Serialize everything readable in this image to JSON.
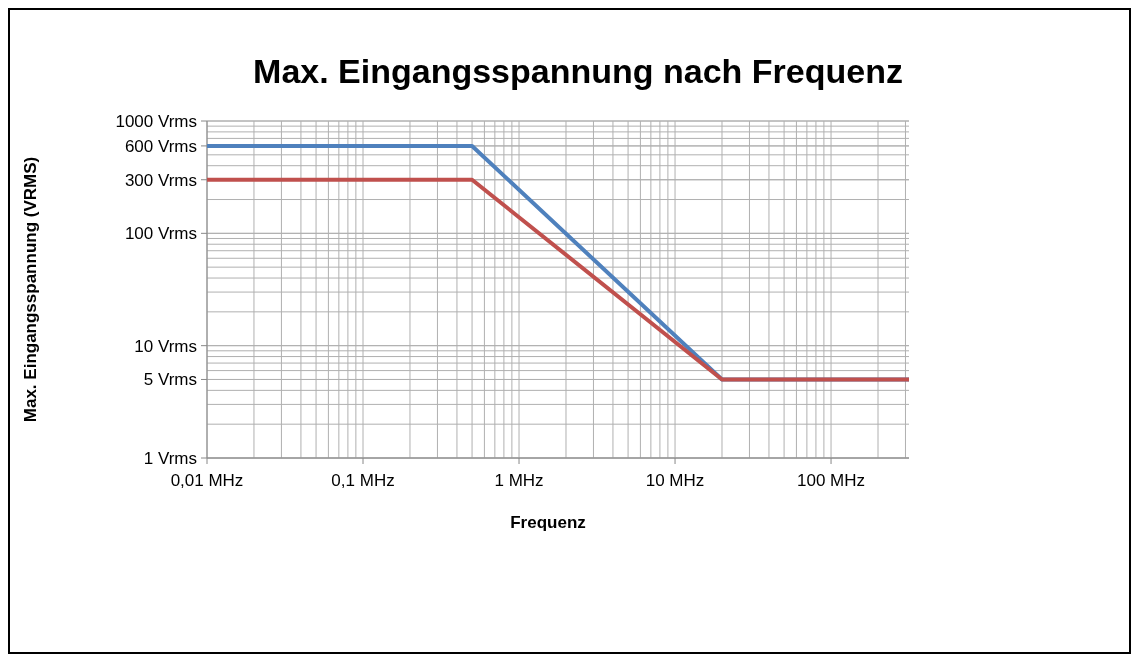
{
  "chart_data": {
    "type": "line",
    "title": "Max. Eingangsspannung nach Frequenz",
    "xlabel": "Frequenz",
    "ylabel": "Max. Eingangsspannung (VRMS)",
    "log": "xy",
    "grid": true,
    "legend": false,
    "xlim": [
      0.01,
      316
    ],
    "xticks": [
      {
        "value": 0.01,
        "label": "0,01 MHz"
      },
      {
        "value": 0.1,
        "label": "0,1 MHz"
      },
      {
        "value": 1,
        "label": "1 MHz"
      },
      {
        "value": 10,
        "label": "10 MHz"
      },
      {
        "value": 100,
        "label": "100 MHz"
      }
    ],
    "ylim": [
      1,
      1000
    ],
    "yticks": [
      {
        "value": 1,
        "label": "1 Vrms"
      },
      {
        "value": 5,
        "label": "5 Vrms"
      },
      {
        "value": 10,
        "label": "10 Vrms"
      },
      {
        "value": 100,
        "label": "100 Vrms"
      },
      {
        "value": 300,
        "label": "300 Vrms"
      },
      {
        "value": 600,
        "label": "600 Vrms"
      },
      {
        "value": 1000,
        "label": "1000 Vrms"
      }
    ],
    "series": [
      {
        "color": "#4f81bd",
        "x": [
          0.01,
          0.5,
          20,
          316
        ],
        "values": [
          600,
          600,
          5,
          5
        ]
      },
      {
        "color": "#c0504d",
        "x": [
          0.01,
          0.5,
          20,
          316
        ],
        "values": [
          300,
          300,
          5,
          5
        ]
      }
    ]
  }
}
